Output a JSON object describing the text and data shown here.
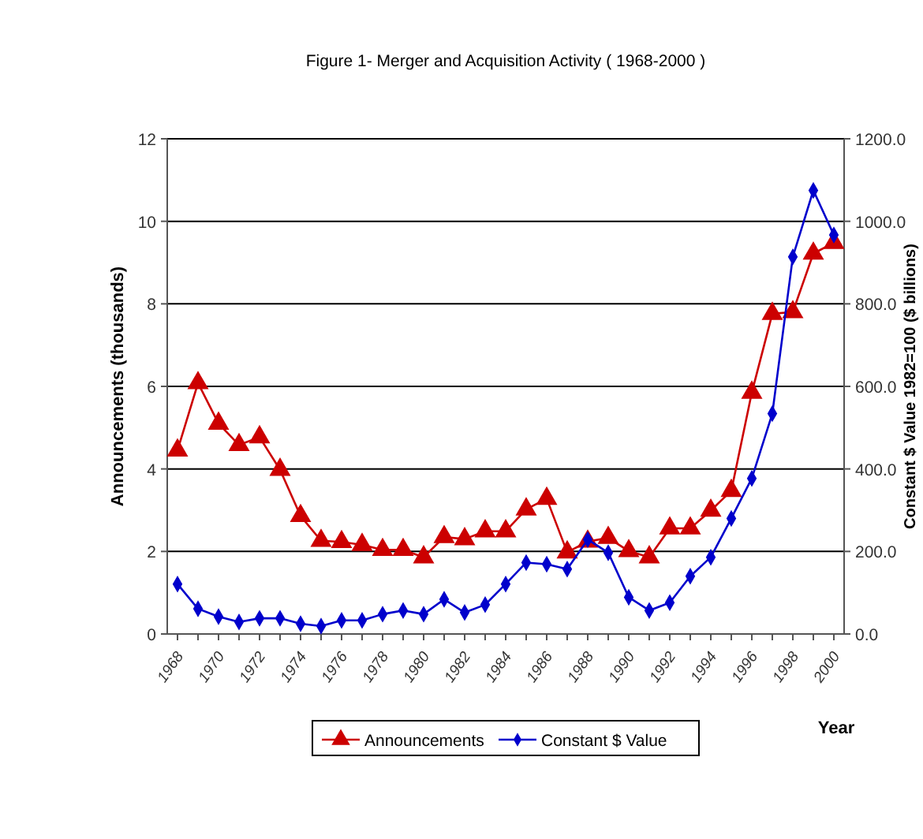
{
  "chart_data": {
    "type": "line",
    "title": "Figure 1- Merger and Acquisition Activity ( 1968-2000 )",
    "xlabel": "Year",
    "ylabel": "Announcements (thousands)",
    "y2label": "Constant $ Value 1982=100 ($ billions)",
    "x": [
      1968,
      1969,
      1970,
      1971,
      1972,
      1973,
      1974,
      1975,
      1976,
      1977,
      1978,
      1979,
      1980,
      1981,
      1982,
      1983,
      1984,
      1985,
      1986,
      1987,
      1988,
      1989,
      1990,
      1991,
      1992,
      1993,
      1994,
      1995,
      1996,
      1997,
      1998,
      1999,
      2000
    ],
    "series": [
      {
        "name": "Announcements",
        "color": "#cc0000",
        "marker": "triangle",
        "values": [
          4.45,
          6.08,
          5.1,
          4.58,
          4.77,
          3.98,
          2.86,
          2.26,
          2.23,
          2.16,
          2.04,
          2.04,
          1.86,
          2.35,
          2.3,
          2.49,
          2.49,
          3.02,
          3.28,
          1.98,
          2.24,
          2.33,
          2.01,
          1.86,
          2.56,
          2.56,
          2.99,
          3.47,
          5.85,
          7.76,
          7.8,
          9.22,
          9.48
        ]
      },
      {
        "name": "Constant $ Value",
        "color": "#0000cc",
        "marker": "diamond",
        "axis": "y2",
        "values": [
          121,
          61,
          42,
          29,
          38,
          38,
          25,
          19,
          33,
          33,
          48,
          57,
          48,
          84,
          52,
          71,
          121,
          173,
          169,
          157,
          229,
          197,
          89,
          57,
          76,
          140,
          186,
          280,
          377,
          534,
          914,
          1075,
          967
        ]
      }
    ],
    "xlim": [
      1967.5,
      2000.5
    ],
    "xticks": [
      1968,
      {
        "value": 1969,
        "label": null
      },
      1970,
      {
        "value": 1971,
        "label": null
      },
      1972,
      {
        "value": 1973,
        "label": null
      },
      1974,
      {
        "value": 1975,
        "label": null
      },
      1976,
      {
        "value": 1977,
        "label": null
      },
      1978,
      {
        "value": 1979,
        "label": null
      },
      1980,
      {
        "value": 1981,
        "label": null
      },
      1982,
      {
        "value": 1983,
        "label": null
      },
      1984,
      {
        "value": 1985,
        "label": null
      },
      1986,
      {
        "value": 1987,
        "label": null
      },
      1988,
      {
        "value": 1989,
        "label": null
      },
      1990,
      {
        "value": 1991,
        "label": null
      },
      1992,
      {
        "value": 1993,
        "label": null
      },
      1994,
      {
        "value": 1995,
        "label": null
      },
      1996,
      {
        "value": 1997,
        "label": null
      },
      1998,
      {
        "value": 1999,
        "label": null
      },
      2000
    ],
    "ylim": [
      0,
      12
    ],
    "yticks": [
      0,
      2,
      4,
      6,
      8,
      10,
      12
    ],
    "y2lim": [
      0,
      1200
    ],
    "y2ticks": [
      {
        "value": 0,
        "label": "0.0"
      },
      {
        "value": 200,
        "label": "200.0"
      },
      {
        "value": 400,
        "label": "400.0"
      },
      {
        "value": 600,
        "label": "600.0"
      },
      {
        "value": 800,
        "label": "800.0"
      },
      {
        "value": 1000,
        "label": "1000.0"
      },
      {
        "value": 1200,
        "label": "1200.0"
      }
    ],
    "grid": "y",
    "legend": "bottom",
    "line_style": "solid"
  }
}
